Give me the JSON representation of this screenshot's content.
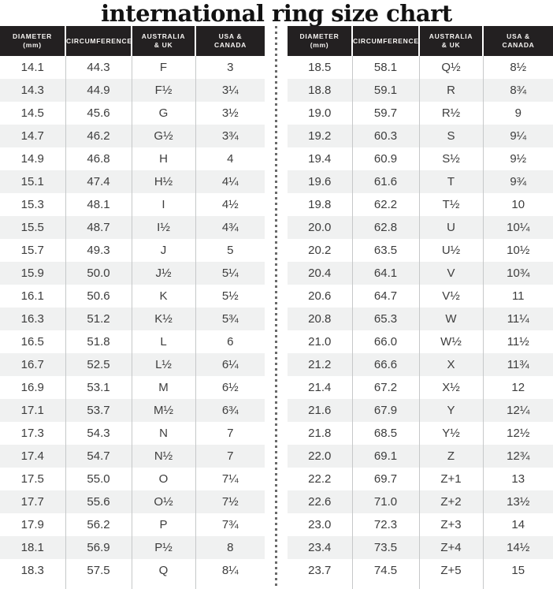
{
  "title": "international ring size chart",
  "colors": {
    "header_bg": "#232021",
    "header_text": "#f5f3f1",
    "row_alt": "#f0f1f1",
    "body_text": "#3d3d3d",
    "divider": "#c6c8c9",
    "dot": "#6a6a6a",
    "title_text": "#121212",
    "page_bg": "#ffffff"
  },
  "header_columns": [
    {
      "line1": "DIAMETER",
      "line2": "(mm)"
    },
    {
      "line1": "CIRCUMFERENCE",
      "line2": ""
    },
    {
      "line1": "AUSTRALIA",
      "line2": "& UK"
    },
    {
      "line1": "USA &",
      "line2": "CANADA"
    }
  ],
  "chart_data": {
    "type": "table",
    "title": "international ring size chart",
    "columns": [
      "DIAMETER (mm)",
      "CIRCUMFERENCE",
      "AUSTRALIA & UK",
      "USA & CANADA"
    ],
    "tables": [
      {
        "side": "left",
        "rows": [
          [
            "14.1",
            "44.3",
            "F",
            "3"
          ],
          [
            "14.3",
            "44.9",
            "F½",
            "3¼"
          ],
          [
            "14.5",
            "45.6",
            "G",
            "3½"
          ],
          [
            "14.7",
            "46.2",
            "G½",
            "3¾"
          ],
          [
            "14.9",
            "46.8",
            "H",
            "4"
          ],
          [
            "15.1",
            "47.4",
            "H½",
            "4¼"
          ],
          [
            "15.3",
            "48.1",
            "I",
            "4½"
          ],
          [
            "15.5",
            "48.7",
            "I½",
            "4¾"
          ],
          [
            "15.7",
            "49.3",
            "J",
            "5"
          ],
          [
            "15.9",
            "50.0",
            "J½",
            "5¼"
          ],
          [
            "16.1",
            "50.6",
            "K",
            "5½"
          ],
          [
            "16.3",
            "51.2",
            "K½",
            "5¾"
          ],
          [
            "16.5",
            "51.8",
            "L",
            "6"
          ],
          [
            "16.7",
            "52.5",
            "L½",
            "6¼"
          ],
          [
            "16.9",
            "53.1",
            "M",
            "6½"
          ],
          [
            "17.1",
            "53.7",
            "M½",
            "6¾"
          ],
          [
            "17.3",
            "54.3",
            "N",
            "7"
          ],
          [
            "17.4",
            "54.7",
            "N½",
            "7"
          ],
          [
            "17.5",
            "55.0",
            "O",
            "7¼"
          ],
          [
            "17.7",
            "55.6",
            "O½",
            "7½"
          ],
          [
            "17.9",
            "56.2",
            "P",
            "7¾"
          ],
          [
            "18.1",
            "56.9",
            "P½",
            "8"
          ],
          [
            "18.3",
            "57.5",
            "Q",
            "8¼"
          ]
        ]
      },
      {
        "side": "right",
        "rows": [
          [
            "18.5",
            "58.1",
            "Q½",
            "8½"
          ],
          [
            "18.8",
            "59.1",
            "R",
            "8¾"
          ],
          [
            "19.0",
            "59.7",
            "R½",
            "9"
          ],
          [
            "19.2",
            "60.3",
            "S",
            "9¼"
          ],
          [
            "19.4",
            "60.9",
            "S½",
            "9½"
          ],
          [
            "19.6",
            "61.6",
            "T",
            "9¾"
          ],
          [
            "19.8",
            "62.2",
            "T½",
            "10"
          ],
          [
            "20.0",
            "62.8",
            "U",
            "10¼"
          ],
          [
            "20.2",
            "63.5",
            "U½",
            "10½"
          ],
          [
            "20.4",
            "64.1",
            "V",
            "10¾"
          ],
          [
            "20.6",
            "64.7",
            "V½",
            "11"
          ],
          [
            "20.8",
            "65.3",
            "W",
            "11¼"
          ],
          [
            "21.0",
            "66.0",
            "W½",
            "11½"
          ],
          [
            "21.2",
            "66.6",
            "X",
            "11¾"
          ],
          [
            "21.4",
            "67.2",
            "X½",
            "12"
          ],
          [
            "21.6",
            "67.9",
            "Y",
            "12¼"
          ],
          [
            "21.8",
            "68.5",
            "Y½",
            "12½"
          ],
          [
            "22.0",
            "69.1",
            "Z",
            "12¾"
          ],
          [
            "22.2",
            "69.7",
            "Z+1",
            "13"
          ],
          [
            "22.6",
            "71.0",
            "Z+2",
            "13½"
          ],
          [
            "23.0",
            "72.3",
            "Z+3",
            "14"
          ],
          [
            "23.4",
            "73.5",
            "Z+4",
            "14½"
          ],
          [
            "23.7",
            "74.5",
            "Z+5",
            "15"
          ]
        ]
      }
    ]
  }
}
